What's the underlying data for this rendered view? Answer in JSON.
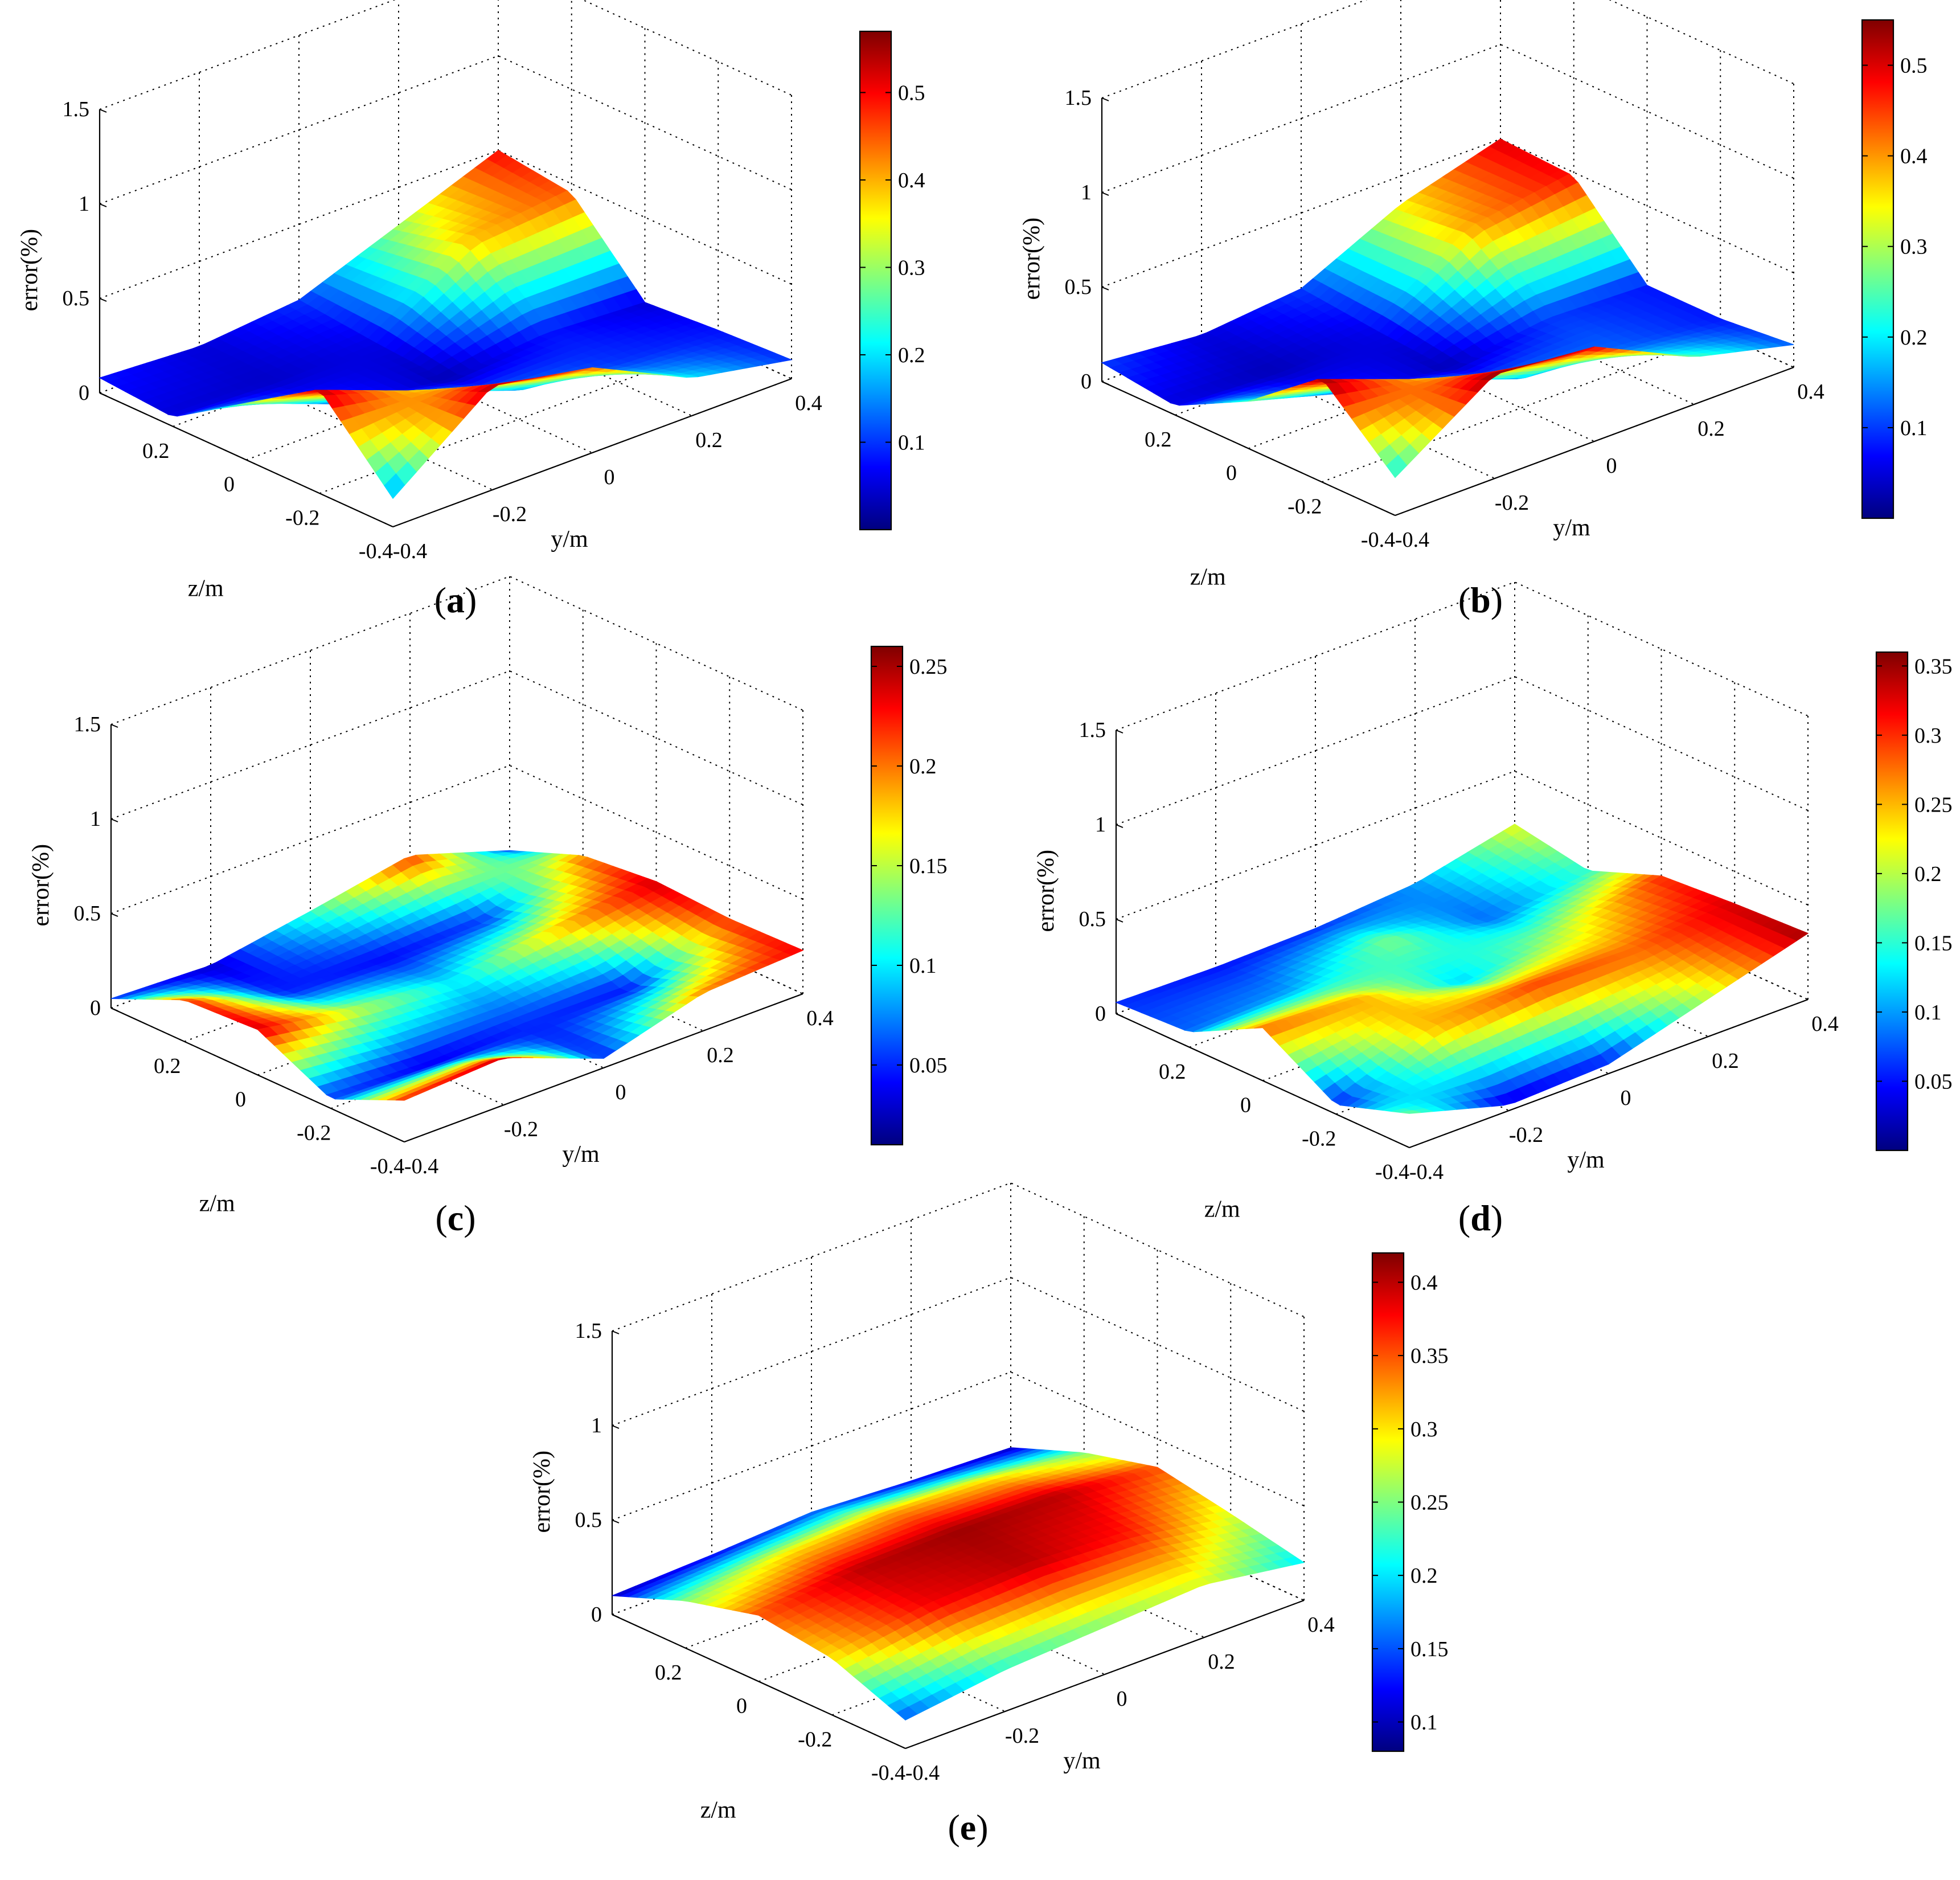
{
  "figure": {
    "colormap_name": "jet",
    "colormap_stops": [
      "#00007f",
      "#0000ff",
      "#007fff",
      "#00ffff",
      "#7fff7f",
      "#ffff00",
      "#ff7f00",
      "#ff0000",
      "#7f0000"
    ]
  },
  "chart_data": [
    {
      "type": "surface3d",
      "panel_label": "a",
      "xlabel": "y/m",
      "ylabel": "z/m",
      "zlabel": "error(%)",
      "xlim": [
        -0.4,
        0.4
      ],
      "ylim": [
        -0.4,
        0.4
      ],
      "zlim": [
        0,
        1.5
      ],
      "x_ticks": [
        "-0.4",
        "-0.2",
        "0",
        "0.2",
        "0.4"
      ],
      "y_ticks": [
        "-0.4",
        "-0.2",
        "0",
        "0.2"
      ],
      "z_ticks": [
        "0",
        "0.5",
        "1",
        "1.5"
      ],
      "x": [
        -0.4,
        -0.2,
        0,
        0.2,
        0.4
      ],
      "y": [
        -0.4,
        -0.2,
        0,
        0.2,
        0.4
      ],
      "z": [
        [
          0.08,
          0.05,
          0.1,
          0.3,
          0.5
        ],
        [
          0.05,
          0.04,
          0.06,
          0.4,
          0.45
        ],
        [
          0.3,
          0.1,
          0.03,
          0.08,
          0.05
        ],
        [
          0.55,
          0.35,
          0.15,
          0.1,
          0.08
        ],
        [
          0.15,
          0.55,
          0.45,
          0.2,
          0.1
        ]
      ],
      "colorbar": {
        "min": 0.0,
        "max": 0.57,
        "ticks": [
          "0.1",
          "0.2",
          "0.3",
          "0.4",
          "0.5"
        ]
      }
    },
    {
      "type": "surface3d",
      "panel_label": "b",
      "xlabel": "y/m",
      "ylabel": "z/m",
      "zlabel": "error(%)",
      "xlim": [
        -0.4,
        0.4
      ],
      "ylim": [
        -0.4,
        0.4
      ],
      "zlim": [
        0,
        1.5
      ],
      "x_ticks": [
        "-0.4",
        "-0.2",
        "0",
        "0.2",
        "0.4"
      ],
      "y_ticks": [
        "-0.4",
        "-0.2",
        "0",
        "0.2"
      ],
      "z_ticks": [
        "0",
        "0.5",
        "1",
        "1.5"
      ],
      "x": [
        -0.4,
        -0.2,
        0,
        0.2,
        0.4
      ],
      "y": [
        -0.4,
        -0.2,
        0,
        0.2,
        0.4
      ],
      "z": [
        [
          0.1,
          0.05,
          0.1,
          0.35,
          0.5
        ],
        [
          0.05,
          0.03,
          0.06,
          0.4,
          0.48
        ],
        [
          0.25,
          0.1,
          0.03,
          0.1,
          0.08
        ],
        [
          0.55,
          0.35,
          0.15,
          0.12,
          0.08
        ],
        [
          0.2,
          0.55,
          0.5,
          0.25,
          0.12
        ]
      ],
      "colorbar": {
        "min": 0.0,
        "max": 0.55,
        "ticks": [
          "0.1",
          "0.2",
          "0.3",
          "0.4",
          "0.5"
        ]
      }
    },
    {
      "type": "surface3d",
      "panel_label": "c",
      "xlabel": "y/m",
      "ylabel": "z/m",
      "zlabel": "error(%)",
      "xlim": [
        -0.4,
        0.4
      ],
      "ylim": [
        -0.4,
        0.4
      ],
      "zlim": [
        0,
        1.5
      ],
      "x_ticks": [
        "-0.4",
        "-0.2",
        "0",
        "0.2",
        "0.4"
      ],
      "y_ticks": [
        "-0.4",
        "-0.2",
        "0",
        "0.2"
      ],
      "z_ticks": [
        "0",
        "0.5",
        "1",
        "1.5"
      ],
      "x": [
        -0.4,
        -0.2,
        0,
        0.2,
        0.4
      ],
      "y": [
        -0.4,
        -0.2,
        0,
        0.2,
        0.4
      ],
      "z": [
        [
          0.05,
          0.03,
          0.12,
          0.22,
          0.05
        ],
        [
          0.22,
          0.05,
          0.04,
          0.05,
          0.2
        ],
        [
          0.24,
          0.15,
          0.1,
          0.18,
          0.24
        ],
        [
          0.05,
          0.03,
          0.05,
          0.04,
          0.22
        ],
        [
          0.22,
          0.25,
          0.05,
          0.2,
          0.23
        ]
      ],
      "colorbar": {
        "min": 0.01,
        "max": 0.26,
        "ticks": [
          "0.05",
          "0.1",
          "0.15",
          "0.2",
          "0.25"
        ]
      }
    },
    {
      "type": "surface3d",
      "panel_label": "d",
      "xlabel": "y/m",
      "ylabel": "z/m",
      "zlabel": "error(%)",
      "xlim": [
        -0.4,
        0.4
      ],
      "ylim": [
        -0.4,
        0.4
      ],
      "zlim": [
        0,
        1.5
      ],
      "x_ticks": [
        "-0.4",
        "-0.2",
        "0",
        "0.2",
        "0.4"
      ],
      "y_ticks": [
        "-0.4",
        "-0.2",
        "0",
        "0.2"
      ],
      "z_ticks": [
        "0",
        "0.5",
        "1",
        "1.5"
      ],
      "x": [
        -0.4,
        -0.2,
        0,
        0.2,
        0.4
      ],
      "y": [
        -0.4,
        -0.2,
        0,
        0.2,
        0.4
      ],
      "z": [
        [
          0.06,
          0.05,
          0.06,
          0.1,
          0.22
        ],
        [
          0.08,
          0.1,
          0.18,
          0.08,
          0.15
        ],
        [
          0.28,
          0.25,
          0.12,
          0.2,
          0.3
        ],
        [
          0.05,
          0.25,
          0.3,
          0.28,
          0.33
        ],
        [
          0.18,
          0.03,
          0.05,
          0.2,
          0.35
        ]
      ],
      "colorbar": {
        "min": 0.0,
        "max": 0.36,
        "ticks": [
          "0.05",
          "0.1",
          "0.15",
          "0.2",
          "0.25",
          "0.3",
          "0.35"
        ]
      }
    },
    {
      "type": "surface3d",
      "panel_label": "e",
      "xlabel": "y/m",
      "ylabel": "z/m",
      "zlabel": "error(%)",
      "xlim": [
        -0.4,
        0.4
      ],
      "ylim": [
        -0.4,
        0.4
      ],
      "zlim": [
        0,
        1.5
      ],
      "x_ticks": [
        "-0.4",
        "-0.2",
        "0",
        "0.2",
        "0.4"
      ],
      "y_ticks": [
        "-0.4",
        "-0.2",
        "0",
        "0.2"
      ],
      "z_ticks": [
        "0",
        "0.5",
        "1",
        "1.5"
      ],
      "x": [
        -0.4,
        -0.2,
        0,
        0.2,
        0.4
      ],
      "y": [
        -0.4,
        -0.2,
        0,
        0.2,
        0.4
      ],
      "z": [
        [
          0.1,
          0.12,
          0.15,
          0.12,
          0.1
        ],
        [
          0.25,
          0.3,
          0.32,
          0.3,
          0.25
        ],
        [
          0.35,
          0.4,
          0.41,
          0.4,
          0.35
        ],
        [
          0.3,
          0.38,
          0.4,
          0.37,
          0.28
        ],
        [
          0.15,
          0.22,
          0.25,
          0.28,
          0.2
        ]
      ],
      "colorbar": {
        "min": 0.08,
        "max": 0.42,
        "ticks": [
          "0.1",
          "0.15",
          "0.2",
          "0.25",
          "0.3",
          "0.35",
          "0.4"
        ]
      }
    }
  ]
}
